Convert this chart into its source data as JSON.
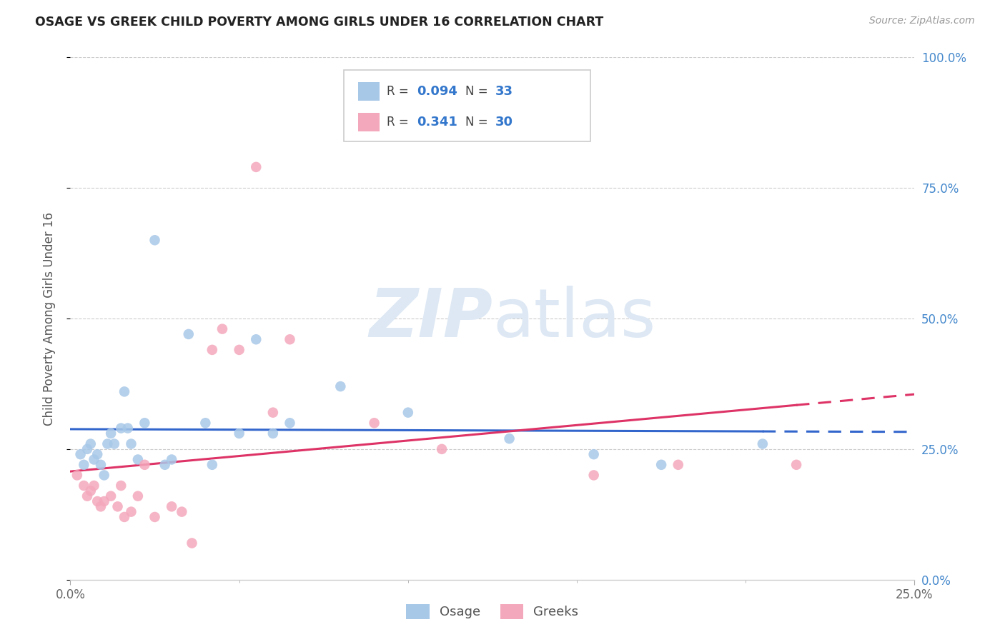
{
  "title": "OSAGE VS GREEK CHILD POVERTY AMONG GIRLS UNDER 16 CORRELATION CHART",
  "source": "Source: ZipAtlas.com",
  "ylabel": "Child Poverty Among Girls Under 16",
  "xlim": [
    0.0,
    0.25
  ],
  "ylim": [
    0.0,
    1.0
  ],
  "osage_color": "#a8c8e8",
  "greeks_color": "#f4a8bc",
  "line_osage_color": "#3366cc",
  "line_greeks_color": "#dd3366",
  "watermark_zip": "ZIP",
  "watermark_atlas": "atlas",
  "background_color": "#ffffff",
  "osage_x": [
    0.003,
    0.004,
    0.005,
    0.006,
    0.007,
    0.008,
    0.009,
    0.01,
    0.011,
    0.012,
    0.013,
    0.015,
    0.016,
    0.017,
    0.018,
    0.02,
    0.022,
    0.025,
    0.028,
    0.03,
    0.035,
    0.04,
    0.042,
    0.05,
    0.055,
    0.06,
    0.065,
    0.08,
    0.1,
    0.13,
    0.155,
    0.175,
    0.205
  ],
  "osage_y": [
    0.24,
    0.22,
    0.25,
    0.26,
    0.23,
    0.24,
    0.22,
    0.2,
    0.26,
    0.28,
    0.26,
    0.29,
    0.36,
    0.29,
    0.26,
    0.23,
    0.3,
    0.65,
    0.22,
    0.23,
    0.47,
    0.3,
    0.22,
    0.28,
    0.46,
    0.28,
    0.3,
    0.37,
    0.32,
    0.27,
    0.24,
    0.22,
    0.26
  ],
  "greeks_x": [
    0.002,
    0.004,
    0.005,
    0.006,
    0.007,
    0.008,
    0.009,
    0.01,
    0.012,
    0.014,
    0.015,
    0.016,
    0.018,
    0.02,
    0.022,
    0.025,
    0.03,
    0.033,
    0.036,
    0.042,
    0.045,
    0.05,
    0.055,
    0.06,
    0.065,
    0.09,
    0.11,
    0.155,
    0.18,
    0.215
  ],
  "greeks_y": [
    0.2,
    0.18,
    0.16,
    0.17,
    0.18,
    0.15,
    0.14,
    0.15,
    0.16,
    0.14,
    0.18,
    0.12,
    0.13,
    0.16,
    0.22,
    0.12,
    0.14,
    0.13,
    0.07,
    0.44,
    0.48,
    0.44,
    0.79,
    0.32,
    0.46,
    0.3,
    0.25,
    0.2,
    0.22,
    0.22
  ],
  "r_osage": 0.094,
  "n_osage": 33,
  "r_greeks": 0.341,
  "n_greeks": 30
}
